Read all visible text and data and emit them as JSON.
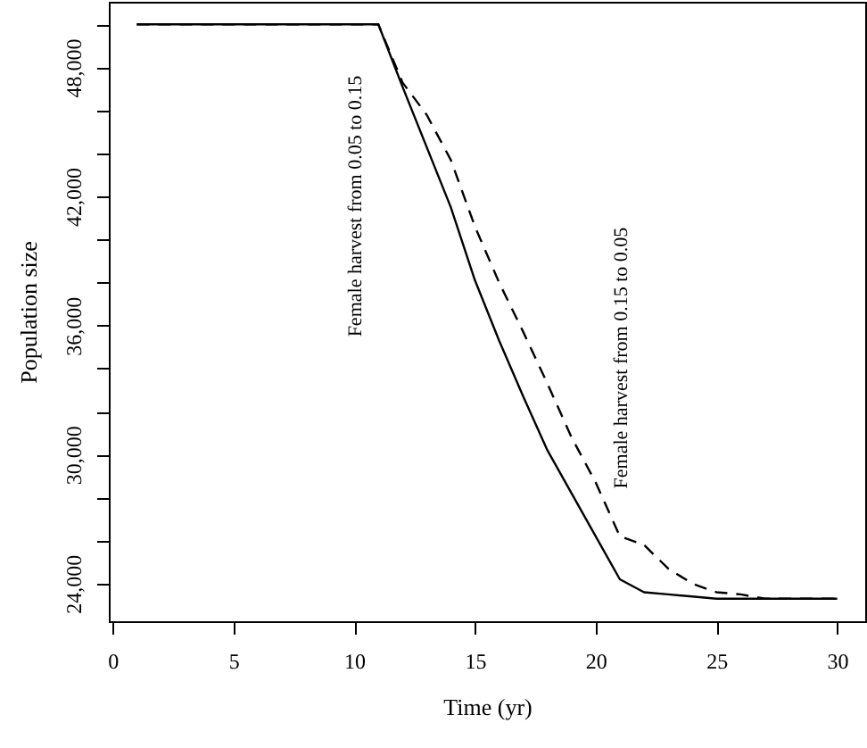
{
  "chart_data": {
    "type": "line",
    "xlabel": "Time (yr)",
    "ylabel": "Population size",
    "x": [
      1,
      2,
      3,
      4,
      5,
      6,
      7,
      8,
      9,
      10,
      11,
      12,
      13,
      14,
      15,
      16,
      17,
      18,
      19,
      20,
      21,
      22,
      23,
      24,
      25,
      26,
      27,
      28,
      29,
      30
    ],
    "series": [
      {
        "color": "#000000",
        "line_style": "solid",
        "values": [
          50000,
          50000,
          50000,
          50000,
          50000,
          50000,
          50000,
          50000,
          50000,
          50000,
          50000,
          47100,
          44300,
          41500,
          38100,
          35300,
          32700,
          30200,
          28200,
          26200,
          24200,
          23600,
          23500,
          23400,
          23300,
          23300,
          23300,
          23300,
          23300,
          23300
        ]
      },
      {
        "color": "#000000",
        "line_style": "dashed",
        "values": [
          50000,
          50000,
          50000,
          50000,
          50000,
          50000,
          50000,
          50000,
          50000,
          50000,
          50000,
          47300,
          45800,
          43700,
          40600,
          38000,
          35700,
          33300,
          30800,
          28700,
          26200,
          25800,
          24700,
          24000,
          23600,
          23500,
          23300,
          23300,
          23300,
          23300
        ]
      }
    ],
    "xlim": [
      -0.16,
      31.16
    ],
    "xticks": [
      0,
      5,
      10,
      15,
      20,
      25,
      30
    ],
    "ylim": [
      22250,
      51050
    ],
    "yticks": [
      {
        "value": 24000,
        "label": "24,000"
      },
      {
        "value": 26000,
        "label": null
      },
      {
        "value": 28000,
        "label": null
      },
      {
        "value": 30000,
        "label": "30,000"
      },
      {
        "value": 32000,
        "label": null
      },
      {
        "value": 34000,
        "label": null
      },
      {
        "value": 36000,
        "label": "36,000"
      },
      {
        "value": 38000,
        "label": null
      },
      {
        "value": 40000,
        "label": null
      },
      {
        "value": 42000,
        "label": "42,000"
      },
      {
        "value": 44000,
        "label": null
      },
      {
        "value": 46000,
        "label": null
      },
      {
        "value": 48000,
        "label": "48,000"
      },
      {
        "value": 50000,
        "label": null
      }
    ],
    "annotations": [
      "Female harvest from 0.05 to 0.15",
      "Female harvest from 0.15 to 0.05"
    ],
    "grid": false,
    "marker": "none"
  }
}
